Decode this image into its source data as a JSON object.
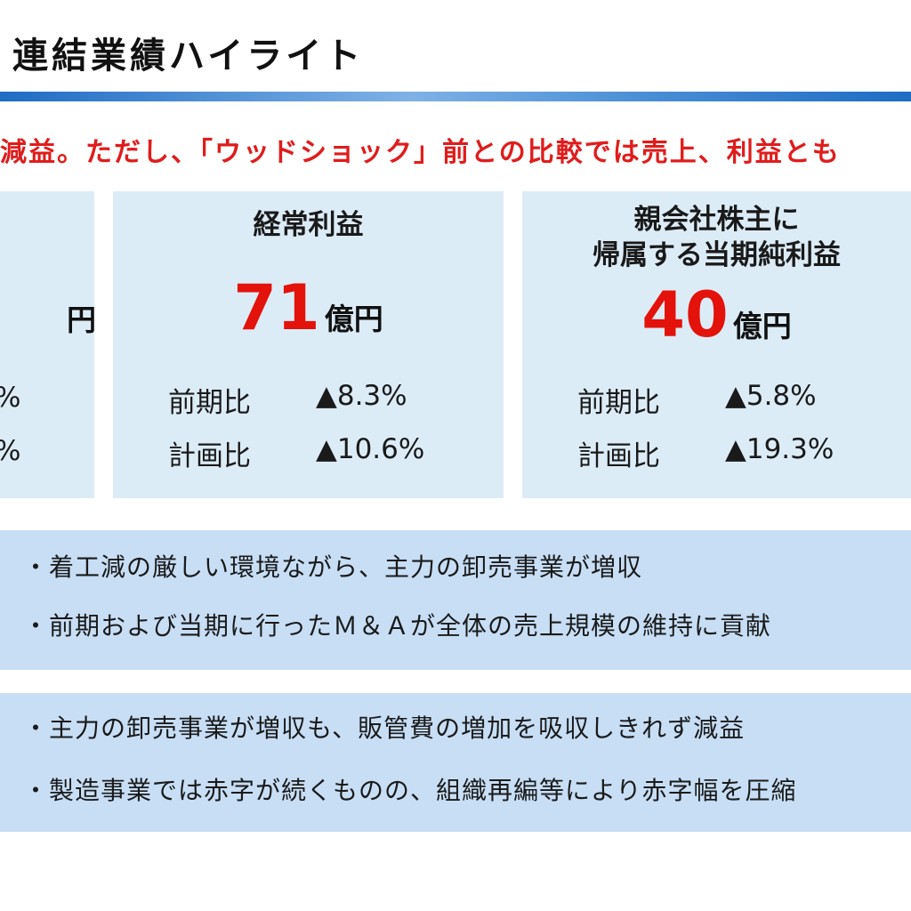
{
  "header": {
    "title": "連結業績ハイライト"
  },
  "subtitle": "減益。ただし、「ウッドショック」前との比較では売上、利益とも",
  "cards": [
    {
      "title": "",
      "value": "",
      "unit": "円",
      "stats": [
        {
          "label": "",
          "value": "%"
        },
        {
          "label": "",
          "value": "%"
        }
      ]
    },
    {
      "title": "経常利益",
      "value": "71",
      "unit": "億円",
      "stats": [
        {
          "label": "前期比",
          "value": "▲8.3%"
        },
        {
          "label": "計画比",
          "value": "▲10.6%"
        }
      ]
    },
    {
      "title_line1": "親会社株主に",
      "title_line2": "帰属する当期純利益",
      "value": "40",
      "unit": "億円",
      "stats": [
        {
          "label": "前期比",
          "value": "▲5.8%"
        },
        {
          "label": "計画比",
          "value": "▲19.3%"
        }
      ]
    }
  ],
  "notes_sales": [
    "・着工減の厳しい環境ながら、主力の卸売事業が増収",
    "・前期および当期に行ったＭ＆Ａが全体の売上規模の維持に貢献"
  ],
  "notes_profit": [
    "・主力の卸売事業が増収も、販管費の増加を吸収しきれず減益",
    "・製造事業では赤字が続くものの、組織再編等により赤字幅を圧縮"
  ],
  "colors": {
    "accent_red": "#e3120b",
    "card_bg": "#dcecf7",
    "note_bg": "#c7def5",
    "bar_blue": "#1e6cc4"
  }
}
